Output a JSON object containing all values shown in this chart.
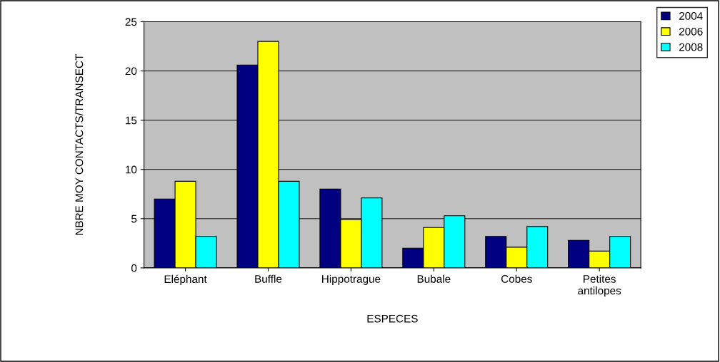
{
  "chart_data": {
    "type": "bar",
    "xlabel": "ESPECES",
    "ylabel": "NBRE MOY CONTACTS/TRANSECT",
    "categories": [
      "Eléphant",
      "Buffle",
      "Hippotrague",
      "Bubale",
      "Cobes",
      "Petites\nantilopes"
    ],
    "series": [
      {
        "name": "2004",
        "color": "#000080",
        "values": [
          7.0,
          20.6,
          8.0,
          2.0,
          3.2,
          2.8
        ]
      },
      {
        "name": "2006",
        "color": "#ffff00",
        "values": [
          8.8,
          23.0,
          4.9,
          4.1,
          2.1,
          1.7
        ]
      },
      {
        "name": "2008",
        "color": "#00ffff",
        "values": [
          3.2,
          8.8,
          7.1,
          5.3,
          4.2,
          3.2
        ]
      }
    ],
    "ylim": [
      0,
      25
    ],
    "yticks": [
      0,
      5,
      10,
      15,
      20,
      25
    ],
    "grid": "y",
    "legend": "top right"
  }
}
